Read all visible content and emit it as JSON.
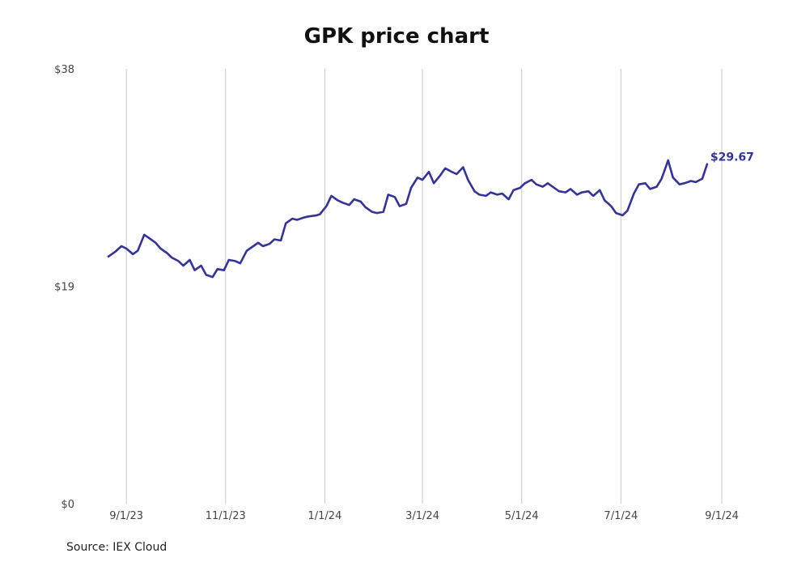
{
  "chart_data": {
    "type": "line",
    "title": "GPK price chart",
    "xlabel": "",
    "ylabel": "",
    "source": "Source: IEX Cloud",
    "ylim": [
      0,
      38
    ],
    "yticks": [
      {
        "value": 0,
        "label": "$0"
      },
      {
        "value": 19,
        "label": "$19"
      },
      {
        "value": 38,
        "label": "$38"
      }
    ],
    "xlim": [
      "2023-08-19",
      "2024-09-01"
    ],
    "xticks": [
      {
        "date": "2023-09-01",
        "label": "9/1/23"
      },
      {
        "date": "2023-11-01",
        "label": "11/1/23"
      },
      {
        "date": "2024-01-01",
        "label": "1/1/24"
      },
      {
        "date": "2024-03-01",
        "label": "3/1/24"
      },
      {
        "date": "2024-05-01",
        "label": "5/1/24"
      },
      {
        "date": "2024-07-01",
        "label": "7/1/24"
      },
      {
        "date": "2024-09-01",
        "label": "9/1/24"
      }
    ],
    "grid": "vertical",
    "last_value_label": "$29.67",
    "color": "#33339a",
    "series": [
      {
        "x": [
          "2023-08-21",
          "2023-08-25",
          "2023-08-29",
          "2023-09-01",
          "2023-09-05",
          "2023-09-08",
          "2023-09-12",
          "2023-09-15",
          "2023-09-19",
          "2023-09-22",
          "2023-09-26",
          "2023-09-29",
          "2023-10-03",
          "2023-10-06",
          "2023-10-10",
          "2023-10-13",
          "2023-10-17",
          "2023-10-20",
          "2023-10-24",
          "2023-10-27",
          "2023-10-31",
          "2023-11-03",
          "2023-11-07",
          "2023-11-10",
          "2023-11-14",
          "2023-11-17",
          "2023-11-21",
          "2023-11-24",
          "2023-11-28",
          "2023-12-01",
          "2023-12-05",
          "2023-12-08",
          "2023-12-12",
          "2023-12-15",
          "2023-12-19",
          "2023-12-22",
          "2023-12-27",
          "2023-12-29",
          "2024-01-02",
          "2024-01-05",
          "2024-01-09",
          "2024-01-12",
          "2024-01-16",
          "2024-01-19",
          "2024-01-23",
          "2024-01-26",
          "2024-01-30",
          "2024-02-02",
          "2024-02-06",
          "2024-02-09",
          "2024-02-13",
          "2024-02-16",
          "2024-02-20",
          "2024-02-23",
          "2024-02-27",
          "2024-03-01",
          "2024-03-05",
          "2024-03-08",
          "2024-03-12",
          "2024-03-15",
          "2024-03-19",
          "2024-03-22",
          "2024-03-26",
          "2024-03-29",
          "2024-04-02",
          "2024-04-05",
          "2024-04-09",
          "2024-04-12",
          "2024-04-16",
          "2024-04-19",
          "2024-04-23",
          "2024-04-26",
          "2024-04-30",
          "2024-05-03",
          "2024-05-07",
          "2024-05-10",
          "2024-05-14",
          "2024-05-17",
          "2024-05-21",
          "2024-05-24",
          "2024-05-28",
          "2024-05-31",
          "2024-06-04",
          "2024-06-07",
          "2024-06-11",
          "2024-06-14",
          "2024-06-18",
          "2024-06-21",
          "2024-06-25",
          "2024-06-28",
          "2024-07-02",
          "2024-07-05",
          "2024-07-09",
          "2024-07-12",
          "2024-07-16",
          "2024-07-19",
          "2024-07-23",
          "2024-07-26",
          "2024-07-30",
          "2024-08-02",
          "2024-08-06",
          "2024-08-09",
          "2024-08-13",
          "2024-08-16",
          "2024-08-20",
          "2024-08-23"
        ],
        "values": [
          21.6,
          22.0,
          22.5,
          22.3,
          21.8,
          22.1,
          23.5,
          23.2,
          22.8,
          22.3,
          21.9,
          21.5,
          21.2,
          20.8,
          21.3,
          20.4,
          20.8,
          20.0,
          19.8,
          20.5,
          20.4,
          21.3,
          21.2,
          21.0,
          22.1,
          22.4,
          22.8,
          22.5,
          22.7,
          23.1,
          23.0,
          24.5,
          24.9,
          24.8,
          25.0,
          25.1,
          25.2,
          25.3,
          26.0,
          26.9,
          26.5,
          26.3,
          26.1,
          26.6,
          26.4,
          25.9,
          25.5,
          25.4,
          25.5,
          27.0,
          26.8,
          26.0,
          26.2,
          27.6,
          28.5,
          28.3,
          29.0,
          28.0,
          28.7,
          29.3,
          29.0,
          28.8,
          29.4,
          28.3,
          27.3,
          27.0,
          26.9,
          27.2,
          27.0,
          27.1,
          26.6,
          27.4,
          27.6,
          28.0,
          28.3,
          27.9,
          27.7,
          28.0,
          27.6,
          27.3,
          27.2,
          27.5,
          27.0,
          27.2,
          27.3,
          26.9,
          27.4,
          26.5,
          26.0,
          25.4,
          25.2,
          25.6,
          27.1,
          27.9,
          28.0,
          27.5,
          27.7,
          28.4,
          30.0,
          28.5,
          27.9,
          28.0,
          28.2,
          28.1,
          28.4,
          29.67
        ]
      }
    ]
  }
}
